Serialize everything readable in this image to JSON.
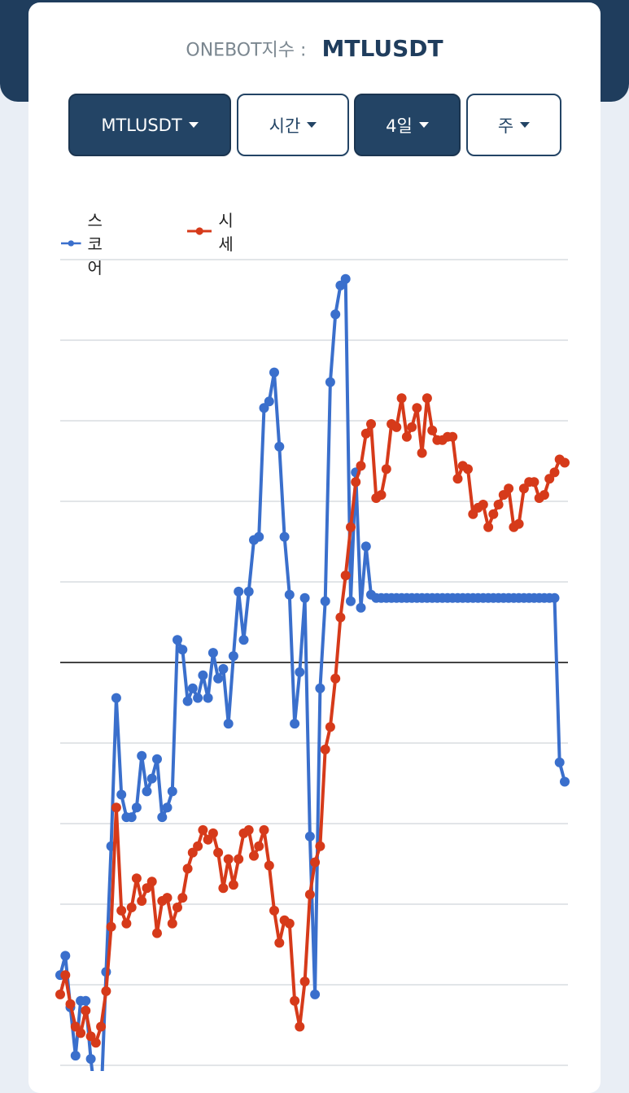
{
  "header": {
    "label": "ONEBOT지수 :",
    "symbol": "MTLUSDT"
  },
  "controls": {
    "symbol_select": "MTLUSDT",
    "unit_select": "시간",
    "period_select": "4일",
    "interval_select": "주"
  },
  "colors": {
    "score": "#3a6fcc",
    "price": "#d63a1a",
    "dark_button": "#234465",
    "band": "#1f3d5d"
  },
  "chart_data": {
    "type": "line",
    "legend_position": "top-left",
    "grid": true,
    "ylim": [
      -250,
      250
    ],
    "x": [
      1,
      2,
      3,
      4,
      5,
      6,
      7,
      8,
      9,
      10,
      11,
      12,
      13,
      14,
      15,
      16,
      17,
      18,
      19,
      20,
      21,
      22,
      23,
      24,
      25,
      26,
      27,
      28,
      29,
      30,
      31,
      32,
      33,
      34,
      35,
      36,
      37,
      38,
      39,
      40,
      41,
      42,
      43,
      44,
      45,
      46,
      47,
      48,
      49,
      50,
      51,
      52,
      53,
      54,
      55,
      56,
      57,
      58,
      59,
      60,
      61,
      62,
      63,
      64,
      65,
      66,
      67,
      68,
      69,
      70,
      71,
      72,
      73,
      74,
      75,
      76,
      77,
      78,
      79,
      80,
      81,
      82,
      83,
      84,
      85,
      86,
      87,
      88,
      89,
      90,
      91,
      92,
      93,
      94,
      95,
      96,
      97,
      98,
      99,
      100
    ],
    "series": [
      {
        "name": "스코어",
        "color": "#3a6fcc",
        "values": [
          -97,
          -91,
          -107,
          -122,
          -105,
          -105,
          -123,
          -137,
          -137,
          -96,
          -57,
          -11,
          -41,
          -48,
          -48,
          -45,
          -29,
          -40,
          -36,
          -30,
          -48,
          -45,
          -40,
          7,
          4,
          -12,
          -8,
          -11,
          -4,
          -11,
          3,
          -5,
          -2,
          -19,
          2,
          22,
          7,
          22,
          38,
          39,
          79,
          81,
          90,
          67,
          39,
          21,
          -19,
          -3,
          20,
          -54,
          -103,
          -8,
          19,
          87,
          108,
          117,
          119,
          19,
          59,
          17,
          36,
          21,
          20,
          20,
          20,
          20,
          20,
          20,
          20,
          20,
          20,
          20,
          20,
          20,
          20,
          20,
          20,
          20,
          20,
          20,
          20,
          20,
          20,
          20,
          20,
          20,
          20,
          20,
          20,
          20,
          20,
          20,
          20,
          20,
          20,
          20,
          20,
          20,
          -31,
          -37
        ],
        "label": "score"
      },
      {
        "name": "시세",
        "color": "#d63a1a",
        "values": [
          -103,
          -97,
          -106,
          -113,
          -115,
          -108,
          -116,
          -118,
          -113,
          -102,
          -82,
          -45,
          -77,
          -81,
          -76,
          -67,
          -74,
          -70,
          -68,
          -84,
          -74,
          -73,
          -81,
          -76,
          -73,
          -64,
          -59,
          -57,
          -52,
          -55,
          -53,
          -59,
          -70,
          -61,
          -69,
          -61,
          -53,
          -52,
          -60,
          -57,
          -52,
          -63,
          -77,
          -87,
          -80,
          -81,
          -105,
          -113,
          -99,
          -72,
          -62,
          -57,
          -27,
          -20,
          -5,
          14,
          27,
          42,
          56,
          61,
          71,
          74,
          51,
          52,
          60,
          74,
          73,
          82,
          70,
          73,
          79,
          65,
          82,
          72,
          69,
          69,
          70,
          70,
          57,
          61,
          60,
          46,
          48,
          49,
          42,
          46,
          49,
          52,
          54,
          42,
          43,
          54,
          56,
          56,
          51,
          52,
          57,
          59,
          63,
          62
        ]
      }
    ]
  }
}
